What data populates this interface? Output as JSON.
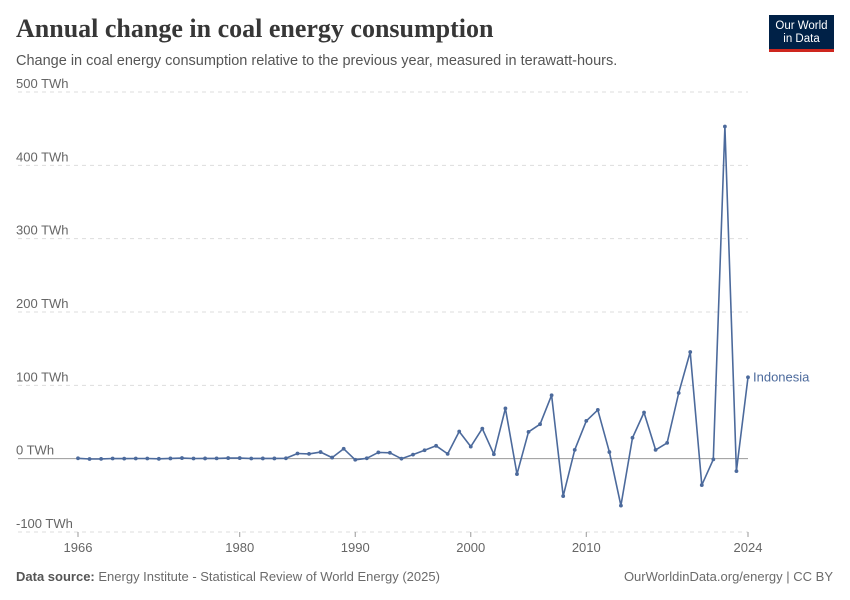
{
  "header": {
    "title": "Annual change in coal energy consumption",
    "subtitle": "Change in coal energy consumption relative to the previous year, measured in terawatt-hours."
  },
  "logo": {
    "line1": "Our World",
    "line2": "in Data"
  },
  "footer": {
    "source_label": "Data source:",
    "source_text": "Energy Institute - Statistical Review of World Energy (2025)",
    "credit": "OurWorldinData.org/energy | CC BY"
  },
  "colors": {
    "series": "#4c6a9c",
    "grid": "#dddddd",
    "logo_bg": "#002147",
    "logo_accent": "#ce261e"
  },
  "chart_data": {
    "type": "line",
    "title": "Annual change in coal energy consumption",
    "ylim": [
      -100,
      500
    ],
    "xlim": [
      1966,
      2024
    ],
    "y_ticks": [
      -100,
      0,
      100,
      200,
      300,
      400,
      500
    ],
    "y_tick_labels": [
      "-100 TWh",
      "0 TWh",
      "100 TWh",
      "200 TWh",
      "300 TWh",
      "400 TWh",
      "500 TWh"
    ],
    "x_ticks": [
      1966,
      1980,
      1990,
      2000,
      2010,
      2024
    ],
    "x_tick_labels": [
      "1966",
      "1980",
      "1990",
      "2000",
      "2010",
      "2024"
    ],
    "grid": "horizontal dashed",
    "series": [
      {
        "name": "Indonesia",
        "x": [
          1966,
          1967,
          1968,
          1969,
          1970,
          1971,
          1972,
          1973,
          1974,
          1975,
          1976,
          1977,
          1978,
          1979,
          1980,
          1981,
          1982,
          1983,
          1984,
          1985,
          1986,
          1987,
          1988,
          1989,
          1990,
          1991,
          1992,
          1993,
          1994,
          1995,
          1996,
          1997,
          1998,
          1999,
          2000,
          2001,
          2002,
          2003,
          2004,
          2005,
          2006,
          2007,
          2008,
          2009,
          2010,
          2011,
          2012,
          2013,
          2014,
          2015,
          2016,
          2017,
          2018,
          2019,
          2020,
          2021,
          2022,
          2023,
          2024
        ],
        "values": [
          0.5,
          -0.5,
          -0.3,
          0.2,
          0.1,
          0.2,
          0.2,
          -0.2,
          0.3,
          0.8,
          0.2,
          0.3,
          0.4,
          0.8,
          0.8,
          0.2,
          0.3,
          0.3,
          0.5,
          7,
          6.5,
          9,
          1.5,
          13.5,
          -1.5,
          0.5,
          8.5,
          8,
          0,
          5.5,
          11.5,
          17.5,
          6.5,
          37,
          16.5,
          41,
          6,
          68.5,
          -21,
          36.5,
          47,
          86.5,
          -51,
          12,
          51.5,
          66.5,
          9,
          -64,
          28.5,
          63,
          12,
          21.5,
          89.5,
          145.5,
          -36,
          -1,
          453,
          -17,
          111
        ]
      }
    ]
  }
}
